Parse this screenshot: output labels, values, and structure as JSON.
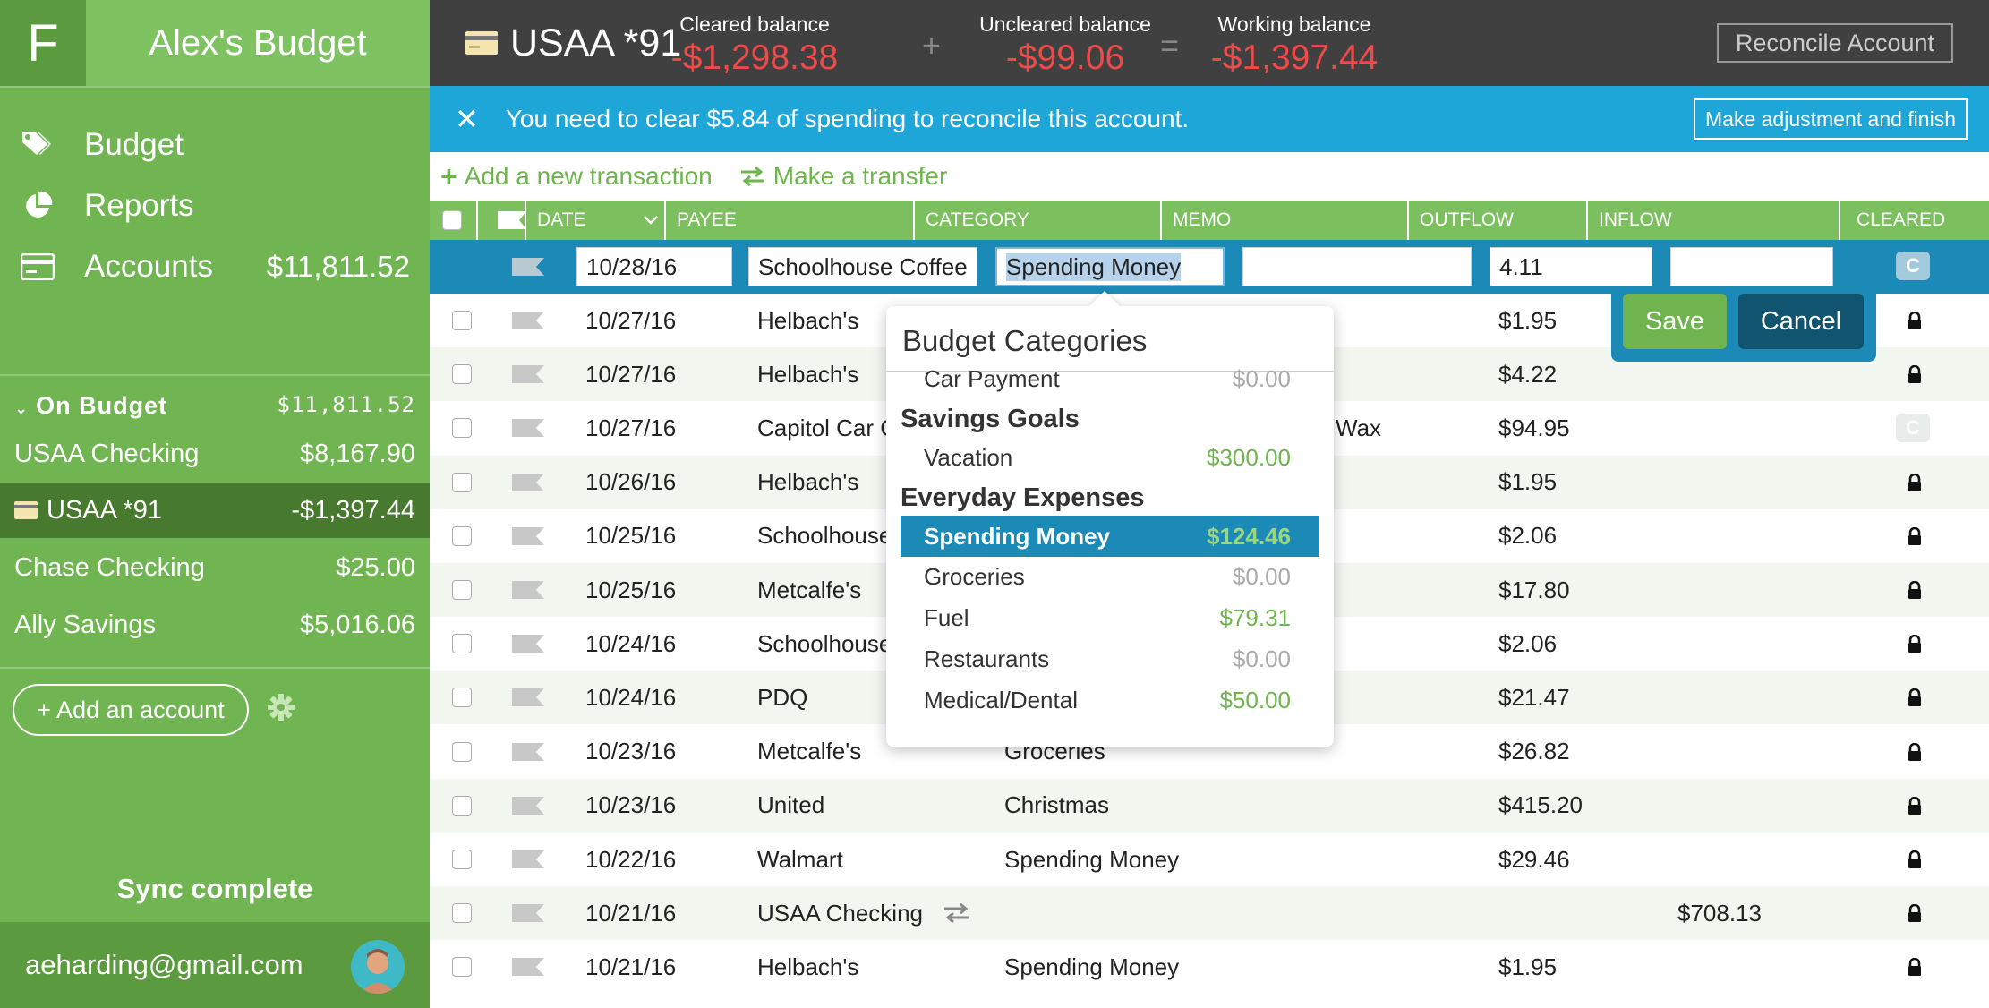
{
  "sidebar": {
    "logo": "F",
    "budget_name": "Alex's Budget",
    "nav": [
      {
        "label": "Budget",
        "icon": "tag-icon"
      },
      {
        "label": "Reports",
        "icon": "pie-chart-icon"
      },
      {
        "label": "Accounts",
        "icon": "credit-card-icon",
        "amount": "$11,811.52"
      }
    ],
    "section": {
      "label": "On Budget",
      "amount": "$11,811.52"
    },
    "accounts": [
      {
        "name": "USAA Checking",
        "amount": "$8,167.90"
      },
      {
        "name": "USAA *91",
        "amount": "-$1,397.44",
        "active": true
      },
      {
        "name": "Chase Checking",
        "amount": "$25.00"
      },
      {
        "name": "Ally Savings",
        "amount": "$5,016.06"
      }
    ],
    "add_account": "+ Add an account",
    "sync_status": "Sync complete",
    "user_email": "aeharding@gmail.com"
  },
  "header": {
    "account_name": "USAA *91",
    "cleared_label": "Cleared balance",
    "cleared_value": "-$1,298.38",
    "plus": "+",
    "uncleared_label": "Uncleared balance",
    "uncleared_value": "-$99.06",
    "equals": "=",
    "working_label": "Working balance",
    "working_value": "-$1,397.44",
    "reconcile_button": "Reconcile Account"
  },
  "reconcile_bar": {
    "close": "✕",
    "message": "You need to clear $5.84 of spending to reconcile this account.",
    "adjust_button": "Make adjustment and finish"
  },
  "toolbar": {
    "add_transaction": "Add a new transaction",
    "make_transfer": "Make a transfer"
  },
  "table": {
    "columns": {
      "date": "DATE",
      "payee": "PAYEE",
      "category": "CATEGORY",
      "memo": "MEMO",
      "outflow": "OUTFLOW",
      "inflow": "INFLOW",
      "cleared": "CLEARED"
    },
    "edit_row": {
      "date": "10/28/16",
      "payee": "Schoolhouse Coffee",
      "category": "Spending Money",
      "memo": "",
      "outflow": "4.11",
      "inflow": "",
      "cleared": "C"
    },
    "rows": [
      {
        "date": "10/27/16",
        "payee": "Helbach's",
        "category": "",
        "memo": "",
        "outflow": "$1.95",
        "inflow": "",
        "status": "lock"
      },
      {
        "date": "10/27/16",
        "payee": "Helbach's",
        "category": "",
        "memo": "",
        "outflow": "$4.22",
        "inflow": "",
        "status": "lock"
      },
      {
        "date": "10/27/16",
        "payee": "Capitol Car C",
        "category": "",
        "memo": "Wax",
        "outflow": "$94.95",
        "inflow": "",
        "status": "C"
      },
      {
        "date": "10/26/16",
        "payee": "Helbach's",
        "category": "",
        "memo": "",
        "outflow": "$1.95",
        "inflow": "",
        "status": "lock"
      },
      {
        "date": "10/25/16",
        "payee": "Schoolhouse",
        "category": "",
        "memo": "",
        "outflow": "$2.06",
        "inflow": "",
        "status": "lock"
      },
      {
        "date": "10/25/16",
        "payee": "Metcalfe's",
        "category": "",
        "memo": "",
        "outflow": "$17.80",
        "inflow": "",
        "status": "lock"
      },
      {
        "date": "10/24/16",
        "payee": "Schoolhouse",
        "category": "",
        "memo": "",
        "outflow": "$2.06",
        "inflow": "",
        "status": "lock"
      },
      {
        "date": "10/24/16",
        "payee": "PDQ",
        "category": "",
        "memo": "",
        "outflow": "$21.47",
        "inflow": "",
        "status": "lock"
      },
      {
        "date": "10/23/16",
        "payee": "Metcalfe's",
        "category": "Groceries",
        "memo": "",
        "outflow": "$26.82",
        "inflow": "",
        "status": "lock"
      },
      {
        "date": "10/23/16",
        "payee": "United",
        "category": "Christmas",
        "memo": "",
        "outflow": "$415.20",
        "inflow": "",
        "status": "lock"
      },
      {
        "date": "10/22/16",
        "payee": "Walmart",
        "category": "Spending Money",
        "memo": "",
        "outflow": "$29.46",
        "inflow": "",
        "status": "lock"
      },
      {
        "date": "10/21/16",
        "payee": "USAA Checking",
        "category": "",
        "memo": "",
        "outflow": "",
        "inflow": "$708.13",
        "status": "lock",
        "transfer": true
      },
      {
        "date": "10/21/16",
        "payee": "Helbach's",
        "category": "Spending Money",
        "memo": "",
        "outflow": "$1.95",
        "inflow": "",
        "status": "lock"
      }
    ]
  },
  "actions": {
    "save": "Save",
    "cancel": "Cancel"
  },
  "dropdown": {
    "title": "Budget Categories",
    "items": [
      {
        "type": "item",
        "name": "Car Payment",
        "value": "$0.00",
        "pos": false
      },
      {
        "type": "group",
        "name": "Savings Goals"
      },
      {
        "type": "item",
        "name": "Vacation",
        "value": "$300.00",
        "pos": true
      },
      {
        "type": "group",
        "name": "Everyday Expenses"
      },
      {
        "type": "item",
        "name": "Spending Money",
        "value": "$124.46",
        "pos": true,
        "selected": true
      },
      {
        "type": "item",
        "name": "Groceries",
        "value": "$0.00",
        "pos": false
      },
      {
        "type": "item",
        "name": "Fuel",
        "value": "$79.31",
        "pos": true
      },
      {
        "type": "item",
        "name": "Restaurants",
        "value": "$0.00",
        "pos": false
      },
      {
        "type": "item",
        "name": "Medical/Dental",
        "value": "$50.00",
        "pos": true
      }
    ]
  },
  "colors": {
    "sidebar": "#71b552",
    "header": "#404040",
    "accent_blue": "#1ea6d9",
    "negative": "#ef4a4a",
    "green": "#6fb44f"
  }
}
